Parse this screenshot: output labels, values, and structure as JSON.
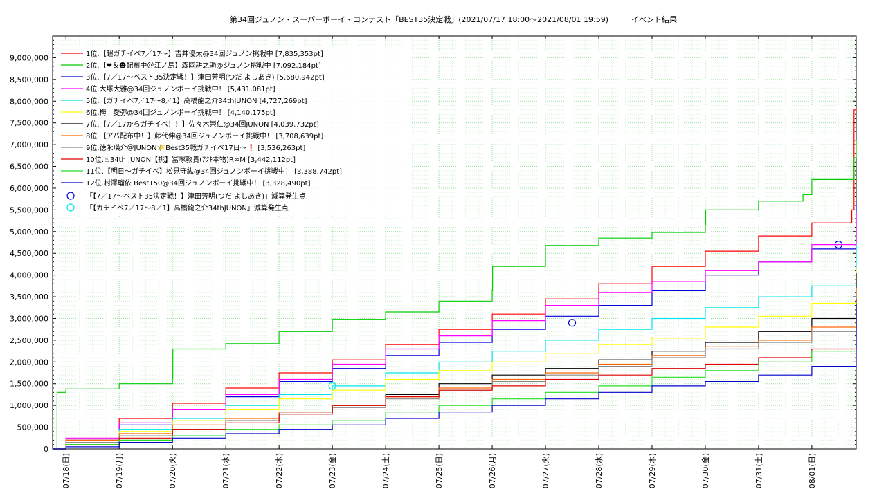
{
  "chart_data": {
    "type": "line",
    "title": "第34回ジュノン・スーパーボーイ・コンテスト「BEST35決定戦」(2021/07/17 18:00〜2021/08/01 19:59)　　　イベント結果",
    "xlabel": "",
    "ylabel": "",
    "x_range": [
      "2021-07-17 18:00",
      "2021-08-01 19:59"
    ],
    "ylim": [
      0,
      9500000
    ],
    "yticks": [
      0,
      500000,
      1000000,
      1500000,
      2000000,
      2500000,
      3000000,
      3500000,
      4000000,
      4500000,
      5000000,
      5500000,
      6000000,
      6500000,
      7000000,
      7500000,
      8000000,
      8500000,
      9000000
    ],
    "ytick_labels": [
      "0",
      "500,000",
      "1,000,000",
      "1,500,000",
      "2,000,000",
      "2,500,000",
      "3,000,000",
      "3,500,000",
      "4,000,000",
      "4,500,000",
      "5,000,000",
      "5,500,000",
      "6,000,000",
      "6,500,000",
      "7,000,000",
      "7,500,000",
      "8,000,000",
      "8,500,000",
      "9,000,000"
    ],
    "xticks": [
      "2021-07-18",
      "2021-07-19",
      "2021-07-20",
      "2021-07-21",
      "2021-07-22",
      "2021-07-23",
      "2021-07-24",
      "2021-07-25",
      "2021-07-26",
      "2021-07-27",
      "2021-07-28",
      "2021-07-29",
      "2021-07-30",
      "2021-07-31",
      "2021-08-01"
    ],
    "xtick_labels": [
      "07/18(日)",
      "07/19(月)",
      "07/20(火)",
      "07/21(水)",
      "07/22(木)",
      "07/23(金)",
      "07/24(土)",
      "07/25(日)",
      "07/26(月)",
      "07/27(火)",
      "07/28(水)",
      "07/29(木)",
      "07/30(金)",
      "07/31(土)",
      "08/01(日)"
    ],
    "grid": true,
    "legend_position": "top-left",
    "series": [
      {
        "name": "1位.【超ガチイベ7／17〜】吉井優太@34回ジュノン挑戦中 [7,835,353pt]",
        "color": "#ff0000",
        "x": [
          "2021-07-17 18:00",
          "2021-07-18 00:00",
          "2021-07-19 00:00",
          "2021-07-20 00:00",
          "2021-07-21 00:00",
          "2021-07-22 00:00",
          "2021-07-23 00:00",
          "2021-07-24 00:00",
          "2021-07-25 00:00",
          "2021-07-26 00:00",
          "2021-07-27 00:00",
          "2021-07-28 00:00",
          "2021-07-29 00:00",
          "2021-07-30 00:00",
          "2021-07-31 00:00",
          "2021-08-01 00:00",
          "2021-08-01 18:00",
          "2021-08-01 19:00",
          "2021-08-01 19:59"
        ],
        "y": [
          0,
          200000,
          700000,
          1050000,
          1400000,
          1750000,
          2050000,
          2400000,
          2750000,
          3100000,
          3450000,
          3800000,
          4200000,
          4550000,
          4900000,
          5200000,
          5500000,
          7800000,
          7835353
        ]
      },
      {
        "name": "2位.【❤＆☻配布中＠江ノ島】森岡耕之助@ジュノン挑戦中 [7,092,184pt]",
        "color": "#00cc00",
        "x": [
          "2021-07-17 18:00",
          "2021-07-17 20:00",
          "2021-07-18 00:00",
          "2021-07-19 00:00",
          "2021-07-20 00:00",
          "2021-07-20 00:10",
          "2021-07-21 00:00",
          "2021-07-22 00:00",
          "2021-07-23 00:00",
          "2021-07-24 00:00",
          "2021-07-25 00:00",
          "2021-07-26 00:00",
          "2021-07-26 00:10",
          "2021-07-27 00:00",
          "2021-07-28 00:00",
          "2021-07-29 00:00",
          "2021-07-30 00:00",
          "2021-07-30 00:10",
          "2021-07-31 00:00",
          "2021-07-31 20:00",
          "2021-08-01 00:00",
          "2021-08-01 19:00",
          "2021-08-01 19:59"
        ],
        "y": [
          0,
          1300000,
          1380000,
          1500000,
          1620000,
          2300000,
          2420000,
          2700000,
          2980000,
          3150000,
          3400000,
          3650000,
          4200000,
          4680000,
          4850000,
          4980000,
          5150000,
          5500000,
          5700000,
          5850000,
          6200000,
          6700000,
          7092184
        ]
      },
      {
        "name": "3位.【7／17〜ベスト35決定戦！】津田芳明(つだ よしあき) [5,680,942pt]",
        "color": "#0000dd",
        "x": [
          "2021-07-17 18:00",
          "2021-07-18 00:00",
          "2021-07-19 00:00",
          "2021-07-20 00:00",
          "2021-07-21 00:00",
          "2021-07-22 00:00",
          "2021-07-23 00:00",
          "2021-07-24 00:00",
          "2021-07-25 00:00",
          "2021-07-26 00:00",
          "2021-07-27 00:00",
          "2021-07-28 00:00",
          "2021-07-29 00:00",
          "2021-07-30 00:00",
          "2021-07-31 00:00",
          "2021-08-01 00:00",
          "2021-08-01 19:59"
        ],
        "y": [
          0,
          200000,
          550000,
          900000,
          1200000,
          1550000,
          1850000,
          2150000,
          2450000,
          2750000,
          3050000,
          3300000,
          3650000,
          4000000,
          4300000,
          4600000,
          5680942
        ]
      },
      {
        "name": "4位.大塚大雅@34回ジュノンボーイ挑戦中！ [5,431,081pt]",
        "color": "#ff00ff",
        "x": [
          "2021-07-17 18:00",
          "2021-07-18 00:00",
          "2021-07-19 00:00",
          "2021-07-20 00:00",
          "2021-07-21 00:00",
          "2021-07-22 00:00",
          "2021-07-23 00:00",
          "2021-07-24 00:00",
          "2021-07-25 00:00",
          "2021-07-26 00:00",
          "2021-07-27 00:00",
          "2021-07-28 00:00",
          "2021-07-29 00:00",
          "2021-07-30 00:00",
          "2021-07-31 00:00",
          "2021-08-01 00:00",
          "2021-08-01 19:59"
        ],
        "y": [
          0,
          250000,
          600000,
          900000,
          1250000,
          1600000,
          1950000,
          2300000,
          2600000,
          2950000,
          3300000,
          3600000,
          3850000,
          4100000,
          4300000,
          4700000,
          5431081
        ]
      },
      {
        "name": "5位.【ガチイベ7／17〜8／1】高橋龍之介34thJUNON [4,727,269pt]",
        "color": "#00e5e5",
        "x": [
          "2021-07-17 18:00",
          "2021-07-18 00:00",
          "2021-07-19 00:00",
          "2021-07-20 00:00",
          "2021-07-21 00:00",
          "2021-07-22 00:00",
          "2021-07-23 00:00",
          "2021-07-24 00:00",
          "2021-07-25 00:00",
          "2021-07-26 00:00",
          "2021-07-27 00:00",
          "2021-07-28 00:00",
          "2021-07-29 00:00",
          "2021-07-30 00:00",
          "2021-07-31 00:00",
          "2021-08-01 00:00",
          "2021-08-01 19:59"
        ],
        "y": [
          0,
          150000,
          450000,
          700000,
          1000000,
          1250000,
          1450000,
          1750000,
          2000000,
          2250000,
          2500000,
          2750000,
          3000000,
          3250000,
          3500000,
          3750000,
          4727269
        ]
      },
      {
        "name": "6位.栂　愛弥@34回ジュノンボーイ挑戦中！ [4,140,175pt]",
        "color": "#ffff00",
        "x": [
          "2021-07-17 18:00",
          "2021-07-18 00:00",
          "2021-07-19 00:00",
          "2021-07-20 00:00",
          "2021-07-21 00:00",
          "2021-07-22 00:00",
          "2021-07-23 00:00",
          "2021-07-24 00:00",
          "2021-07-25 00:00",
          "2021-07-26 00:00",
          "2021-07-27 00:00",
          "2021-07-28 00:00",
          "2021-07-29 00:00",
          "2021-07-30 00:00",
          "2021-07-31 00:00",
          "2021-08-01 00:00",
          "2021-08-01 19:59"
        ],
        "y": [
          0,
          150000,
          400000,
          650000,
          900000,
          1150000,
          1350000,
          1600000,
          1800000,
          2000000,
          2200000,
          2400000,
          2550000,
          2800000,
          3050000,
          3350000,
          4140175
        ]
      },
      {
        "name": "7位.【7／17からガチイベ！！】佐々木崇仁@34回JUNON [4,039,732pt]",
        "color": "#000000",
        "x": [
          "2021-07-17 18:00",
          "2021-07-18 00:00",
          "2021-07-19 00:00",
          "2021-07-20 00:00",
          "2021-07-21 00:00",
          "2021-07-22 00:00",
          "2021-07-23 00:00",
          "2021-07-24 00:00",
          "2021-07-25 00:00",
          "2021-07-26 00:00",
          "2021-07-27 00:00",
          "2021-07-28 00:00",
          "2021-07-29 00:00",
          "2021-07-30 00:00",
          "2021-07-31 00:00",
          "2021-08-01 00:00",
          "2021-08-01 19:59"
        ],
        "y": [
          0,
          150000,
          300000,
          450000,
          650000,
          850000,
          1000000,
          1250000,
          1500000,
          1700000,
          1850000,
          2050000,
          2250000,
          2450000,
          2700000,
          3000000,
          4039732
        ]
      },
      {
        "name": "8位.【アバ配布中！】藤代伸@34回ジュノンボーイ挑戦中！ [3,708,639pt]",
        "color": "#ff6600",
        "x": [
          "2021-07-17 18:00",
          "2021-07-18 00:00",
          "2021-07-19 00:00",
          "2021-07-20 00:00",
          "2021-07-21 00:00",
          "2021-07-22 00:00",
          "2021-07-23 00:00",
          "2021-07-24 00:00",
          "2021-07-25 00:00",
          "2021-07-26 00:00",
          "2021-07-27 00:00",
          "2021-07-28 00:00",
          "2021-07-29 00:00",
          "2021-07-30 00:00",
          "2021-07-31 00:00",
          "2021-08-01 00:00",
          "2021-08-01 19:59"
        ],
        "y": [
          0,
          200000,
          350000,
          550000,
          700000,
          850000,
          1000000,
          1200000,
          1400000,
          1600000,
          1750000,
          1950000,
          2150000,
          2350000,
          2500000,
          2800000,
          3708639
        ]
      },
      {
        "name": "9位.徳永瑛介＠JUNON🌾Best35戦ガチイベ17日〜❗ [3,536,263pt]",
        "color": "#888888",
        "x": [
          "2021-07-17 18:00",
          "2021-07-18 00:00",
          "2021-07-19 00:00",
          "2021-07-20 00:00",
          "2021-07-21 00:00",
          "2021-07-22 00:00",
          "2021-07-23 00:00",
          "2021-07-24 00:00",
          "2021-07-25 00:00",
          "2021-07-26 00:00",
          "2021-07-27 00:00",
          "2021-07-28 00:00",
          "2021-07-29 00:00",
          "2021-07-30 00:00",
          "2021-07-31 00:00",
          "2021-08-01 00:00",
          "2021-08-01 19:59"
        ],
        "y": [
          0,
          150000,
          300000,
          450000,
          650000,
          800000,
          950000,
          1150000,
          1350000,
          1550000,
          1700000,
          1900000,
          2100000,
          2300000,
          2450000,
          2700000,
          3536263
        ]
      },
      {
        "name": "10位.♨34th JUNON【挑】冨塚敦貴(ｱﾂｷ本物)R∞M [3,442,112pt]",
        "color": "#dd0000",
        "x": [
          "2021-07-17 18:00",
          "2021-07-18 00:00",
          "2021-07-19 00:00",
          "2021-07-20 00:00",
          "2021-07-21 00:00",
          "2021-07-22 00:00",
          "2021-07-23 00:00",
          "2021-07-24 00:00",
          "2021-07-25 00:00",
          "2021-07-26 00:00",
          "2021-07-27 00:00",
          "2021-07-28 00:00",
          "2021-07-29 00:00",
          "2021-07-30 00:00",
          "2021-07-31 00:00",
          "2021-08-01 00:00",
          "2021-08-01 19:59"
        ],
        "y": [
          0,
          100000,
          250000,
          450000,
          600000,
          800000,
          1000000,
          1200000,
          1350000,
          1450000,
          1600000,
          1700000,
          1850000,
          1950000,
          2100000,
          2300000,
          3442112
        ]
      },
      {
        "name": "11位.【明日〜ガチイベ】松見守紘@34回ジュノンボーイ挑戦中！ [3,388,742pt]",
        "color": "#22dd22",
        "x": [
          "2021-07-17 18:00",
          "2021-07-18 00:00",
          "2021-07-19 00:00",
          "2021-07-20 00:00",
          "2021-07-21 00:00",
          "2021-07-22 00:00",
          "2021-07-23 00:00",
          "2021-07-24 00:00",
          "2021-07-25 00:00",
          "2021-07-26 00:00",
          "2021-07-27 00:00",
          "2021-07-28 00:00",
          "2021-07-29 00:00",
          "2021-07-30 00:00",
          "2021-07-31 00:00",
          "2021-08-01 00:00",
          "2021-08-01 19:59"
        ],
        "y": [
          0,
          100000,
          200000,
          300000,
          450000,
          550000,
          650000,
          850000,
          1000000,
          1150000,
          1300000,
          1450000,
          1650000,
          1800000,
          2000000,
          2250000,
          3388742
        ]
      },
      {
        "name": "12位.村澤瑠依 Best150@34回ジュノンボーイ挑戦中！ [3,328,490pt]",
        "color": "#0000cc",
        "x": [
          "2021-07-17 18:00",
          "2021-07-18 00:00",
          "2021-07-19 00:00",
          "2021-07-20 00:00",
          "2021-07-21 00:00",
          "2021-07-22 00:00",
          "2021-07-23 00:00",
          "2021-07-24 00:00",
          "2021-07-25 00:00",
          "2021-07-26 00:00",
          "2021-07-27 00:00",
          "2021-07-28 00:00",
          "2021-07-29 00:00",
          "2021-07-30 00:00",
          "2021-07-31 00:00",
          "2021-08-01 00:00",
          "2021-08-01 19:59"
        ],
        "y": [
          0,
          50000,
          150000,
          250000,
          350000,
          450000,
          550000,
          700000,
          850000,
          1000000,
          1150000,
          1300000,
          1450000,
          1550000,
          1700000,
          1900000,
          3328490
        ]
      }
    ],
    "markers": [
      {
        "name": "「【7／17〜ベスト35決定戦！】津田芳明(つだ よしあき)」減算発生点",
        "color": "#0000dd",
        "points": [
          {
            "x": "2021-07-27 12:00",
            "y": 2900000
          },
          {
            "x": "2021-08-01 12:00",
            "y": 4700000
          }
        ]
      },
      {
        "name": "「【ガチイベ7／17〜8／1】高橋龍之介34thJUNON」減算発生点",
        "color": "#00e5e5",
        "points": [
          {
            "x": "2021-07-23 00:00",
            "y": 1450000
          }
        ]
      }
    ]
  }
}
